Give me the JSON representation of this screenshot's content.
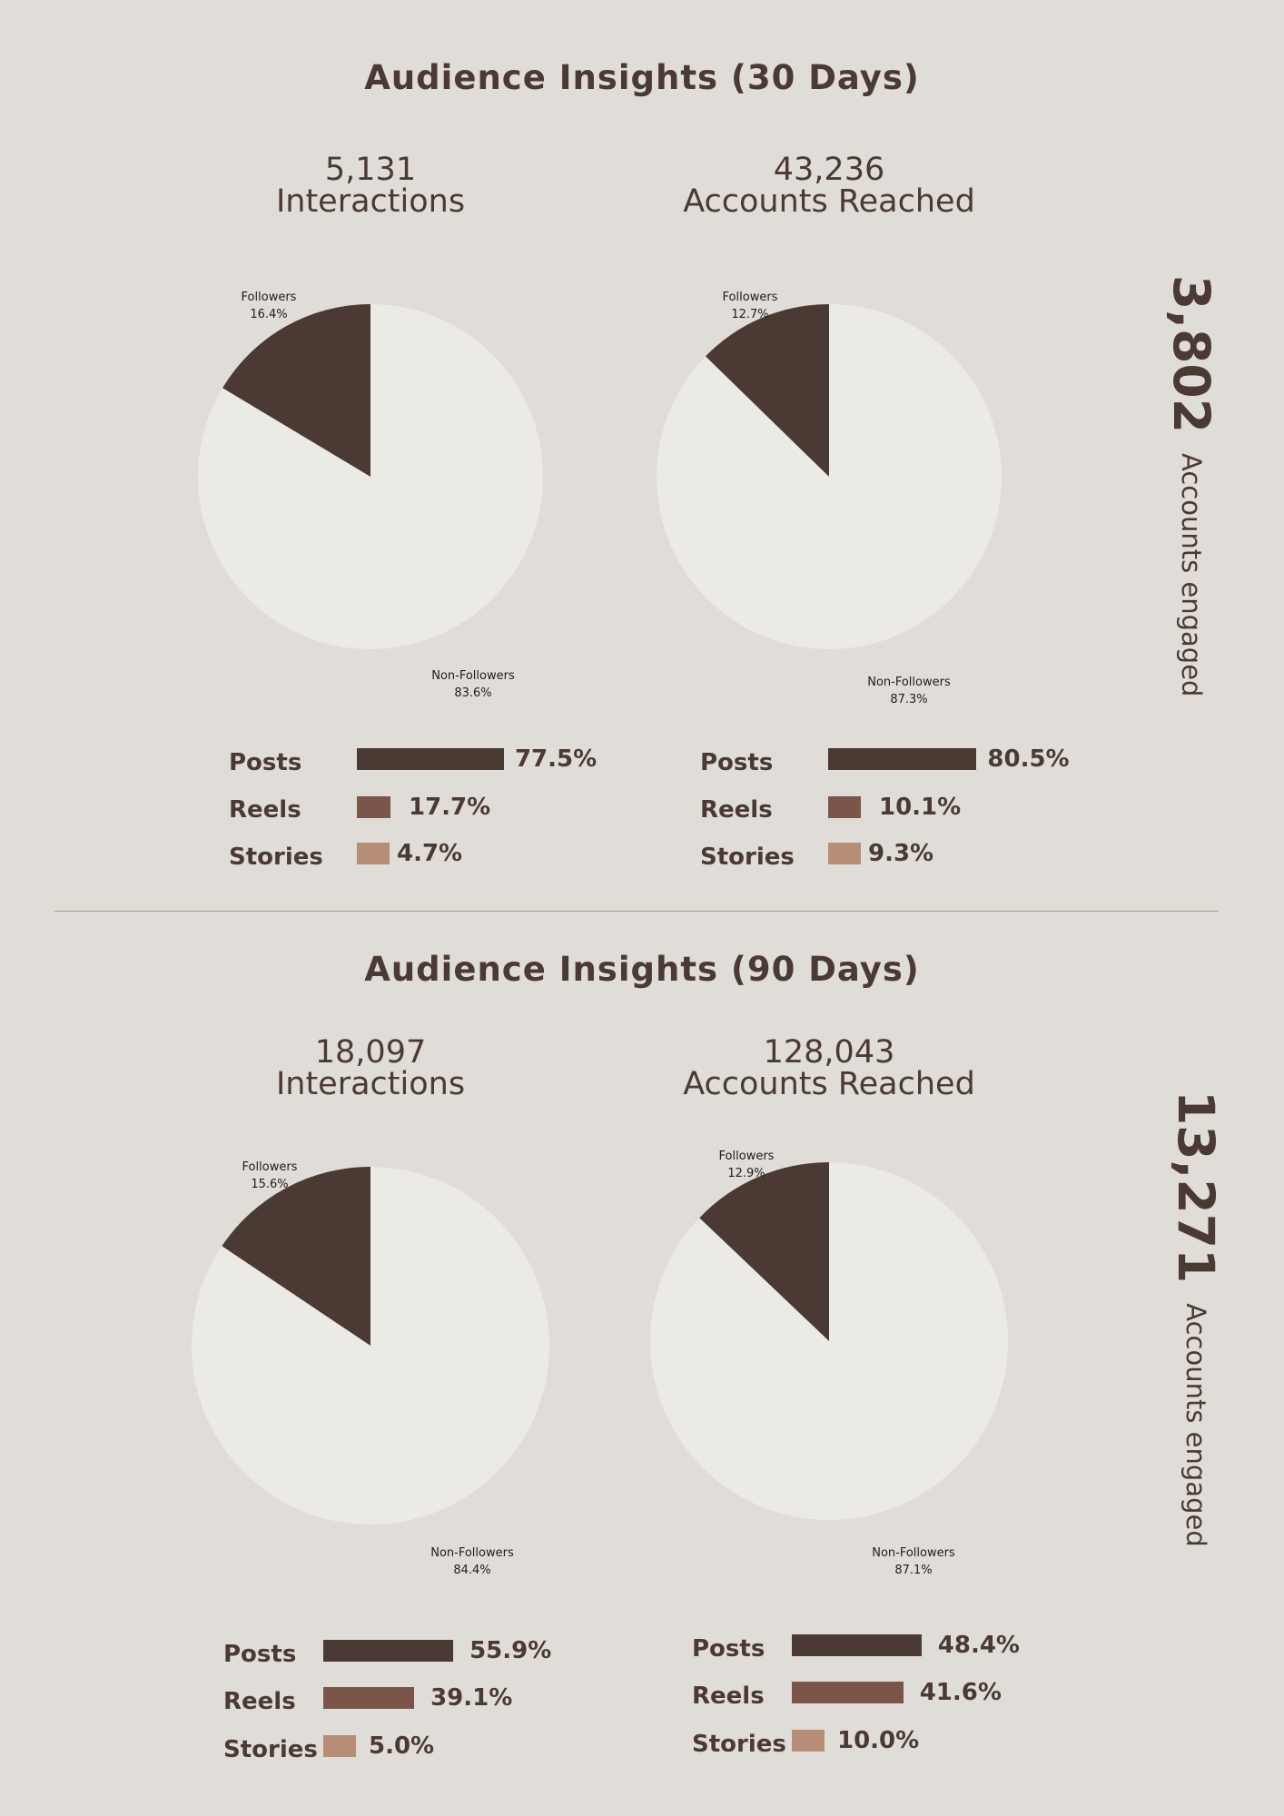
{
  "colors": {
    "background": "#e0ddd8",
    "text": "#4b3a33",
    "followers": "#4b3a33",
    "non_followers": "#eceae5",
    "posts": "#4b3a33",
    "reels": "#7b554a",
    "stories": "#b78d78",
    "divider": "#b59786"
  },
  "sections": [
    {
      "title": "Audience Insights (30 Days)",
      "engaged": {
        "value": "3,802",
        "label": "Accounts engaged"
      },
      "panels": [
        {
          "metric_value": "5,131",
          "metric_label": "Interactions"
        },
        {
          "metric_value": "43,236",
          "metric_label": "Accounts Reached"
        }
      ]
    },
    {
      "title": "Audience Insights (90 Days)",
      "engaged": {
        "value": "13,271",
        "label": "Accounts engaged"
      },
      "panels": [
        {
          "metric_value": "18,097",
          "metric_label": "Interactions"
        },
        {
          "metric_value": "128,043",
          "metric_label": "Accounts Reached"
        }
      ]
    }
  ],
  "chart_data": [
    {
      "type": "pie",
      "categories": [
        "Followers",
        "Non-Followers"
      ],
      "values": [
        16.4,
        83.6
      ],
      "labels": [
        "16.4%",
        "83.6%"
      ]
    },
    {
      "type": "bar",
      "categories": [
        "Posts",
        "Reels",
        "Stories"
      ],
      "values": [
        77.5,
        17.7,
        4.7
      ],
      "labels": [
        "77.5%",
        "17.7%",
        "4.7%"
      ]
    },
    {
      "type": "pie",
      "categories": [
        "Followers",
        "Non-Followers"
      ],
      "values": [
        12.7,
        87.3
      ],
      "labels": [
        "12.7%",
        "87.3%"
      ]
    },
    {
      "type": "bar",
      "categories": [
        "Posts",
        "Reels",
        "Stories"
      ],
      "values": [
        80.5,
        10.1,
        9.3
      ],
      "labels": [
        "80.5%",
        "10.1%",
        "9.3%"
      ]
    },
    {
      "type": "pie",
      "categories": [
        "Followers",
        "Non-Followers"
      ],
      "values": [
        15.6,
        84.4
      ],
      "labels": [
        "15.6%",
        "84.4%"
      ]
    },
    {
      "type": "bar",
      "categories": [
        "Posts",
        "Reels",
        "Stories"
      ],
      "values": [
        55.9,
        39.1,
        5.0
      ],
      "labels": [
        "55.9%",
        "39.1%",
        "5.0%"
      ]
    },
    {
      "type": "pie",
      "categories": [
        "Followers",
        "Non-Followers"
      ],
      "values": [
        12.9,
        87.1
      ],
      "labels": [
        "12.9%",
        "87.1%"
      ]
    },
    {
      "type": "bar",
      "categories": [
        "Posts",
        "Reels",
        "Stories"
      ],
      "values": [
        48.4,
        41.6,
        10.0
      ],
      "labels": [
        "48.4%",
        "41.6%",
        "10.0%"
      ]
    }
  ]
}
